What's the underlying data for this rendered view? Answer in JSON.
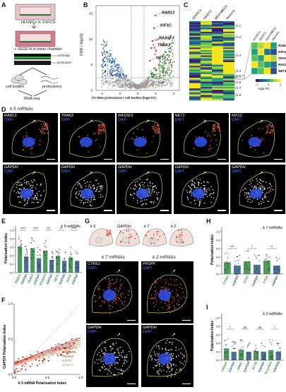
{
  "panelA": {
    "letter": "A",
    "cond1": "HUVECs in 1%FCS",
    "cond2": "+ VEGF-A in lower chamber",
    "cell_body": "cell body",
    "protrusion": "protrusion",
    "cell_bodies": "cell bodies",
    "protrusions": "protrusions",
    "rnaseq": "RNA-seq"
  },
  "panelB": {
    "letter": "B",
    "ylabel": "FDR (-log10)",
    "xlabel": "FC RNA protrusions / cell bodies (log2 FC)",
    "genes": [
      "RAB13",
      "KIF1C",
      "RASSF3",
      "TRAK2",
      "NET1"
    ],
    "legend": [
      "q < 0.05",
      "q < 0.05 FC > 1.5",
      "k 5",
      "RAB"
    ],
    "colors": {
      "grey": "#9a9a9a",
      "blue": "#1f5fa8",
      "green": "#2e8b3e",
      "red": "#d23a2a",
      "orange": "#f0a030"
    },
    "yticks": [
      "0",
      "5",
      "10",
      "15"
    ],
    "xticks": [
      "-4",
      "-2",
      "0",
      "2",
      "4"
    ]
  },
  "panelC": {
    "letter": "C",
    "cols": [
      "HUVECs",
      "NIH3T3",
      "MDA-MB231",
      "Neurons"
    ],
    "clusters": [
      "k 1",
      "k 2",
      "k 3",
      "k 4",
      "k 5",
      "k 6",
      "k 7",
      "k 8"
    ],
    "genes": [
      "RAB13",
      "KIF1C",
      "TRAK2",
      "RASSF3",
      "NET1"
    ],
    "colorbar_label": "log2 FC",
    "colorbar_ticks": [
      "-2",
      "0",
      "2"
    ]
  },
  "panelD": {
    "letter": "D",
    "title": "k 5 mRNAs",
    "top": [
      "RAB13",
      "TRAK2",
      "RASSF3",
      "NET1",
      "KIF1C"
    ],
    "bottom": [
      "GAPDH",
      "GAPDH",
      "GAPDH",
      "GAPDH",
      "GAPDH"
    ],
    "dapi": "DAPI"
  },
  "panelE": {
    "letter": "E",
    "title": "k 5 mRNAs",
    "ylabel": "Polarisation Index",
    "cats": [
      "RAB13",
      "GAPDH",
      "TRAK2",
      "GAPDH",
      "RASSF3",
      "GAPDH",
      "NET1",
      "GAPDH",
      "KIF1C",
      "GAPDH"
    ],
    "sig": [
      "****",
      "****",
      "***",
      "**",
      "****"
    ],
    "yticks": [
      "0.0",
      "0.2",
      "0.4",
      "0.6",
      "0.8",
      "1.0"
    ]
  },
  "panelF": {
    "letter": "F",
    "ylabel": "GAPDH Polarisation Index",
    "xlabel": "k 5 mRNA Polarisation Index",
    "legend": [
      "NET1",
      "RASSF3",
      "TRAK2",
      "KIF1C",
      "RAB13"
    ],
    "ticks": [
      "0.0",
      "0.5",
      "1.0"
    ]
  },
  "panelG": {
    "letter": "G",
    "diagrams": [
      "k 5",
      "GAPDH",
      "k 7",
      "k 2"
    ],
    "title_k7": "k 7 mRNAs",
    "title_k2": "k 2 mRNAs",
    "images": [
      "CYR61",
      "PPDPF",
      "GAPDH",
      "GAPDH"
    ],
    "dapi": "DAPI"
  },
  "panelH": {
    "letter": "H",
    "title": "k 7 mRNAs",
    "ylabel": "Polarisation Index",
    "cats": [
      "CYR61",
      "GAPDH",
      "CCN1",
      "GAPDH",
      "CTGF",
      "GAPDH"
    ],
    "sig": [
      "***",
      "*",
      "**"
    ]
  },
  "panelI": {
    "letter": "I",
    "title": "k 2 mRNAs",
    "ylabel": "Polarisation Index",
    "cats": [
      "PPDPF",
      "GAPDH",
      "DBNL",
      "GAPDH",
      "ACTB",
      "GAPDH",
      "SLC25A3",
      "GAPDH"
    ],
    "sig": [
      "*",
      "ns",
      "ns",
      "*"
    ]
  }
}
